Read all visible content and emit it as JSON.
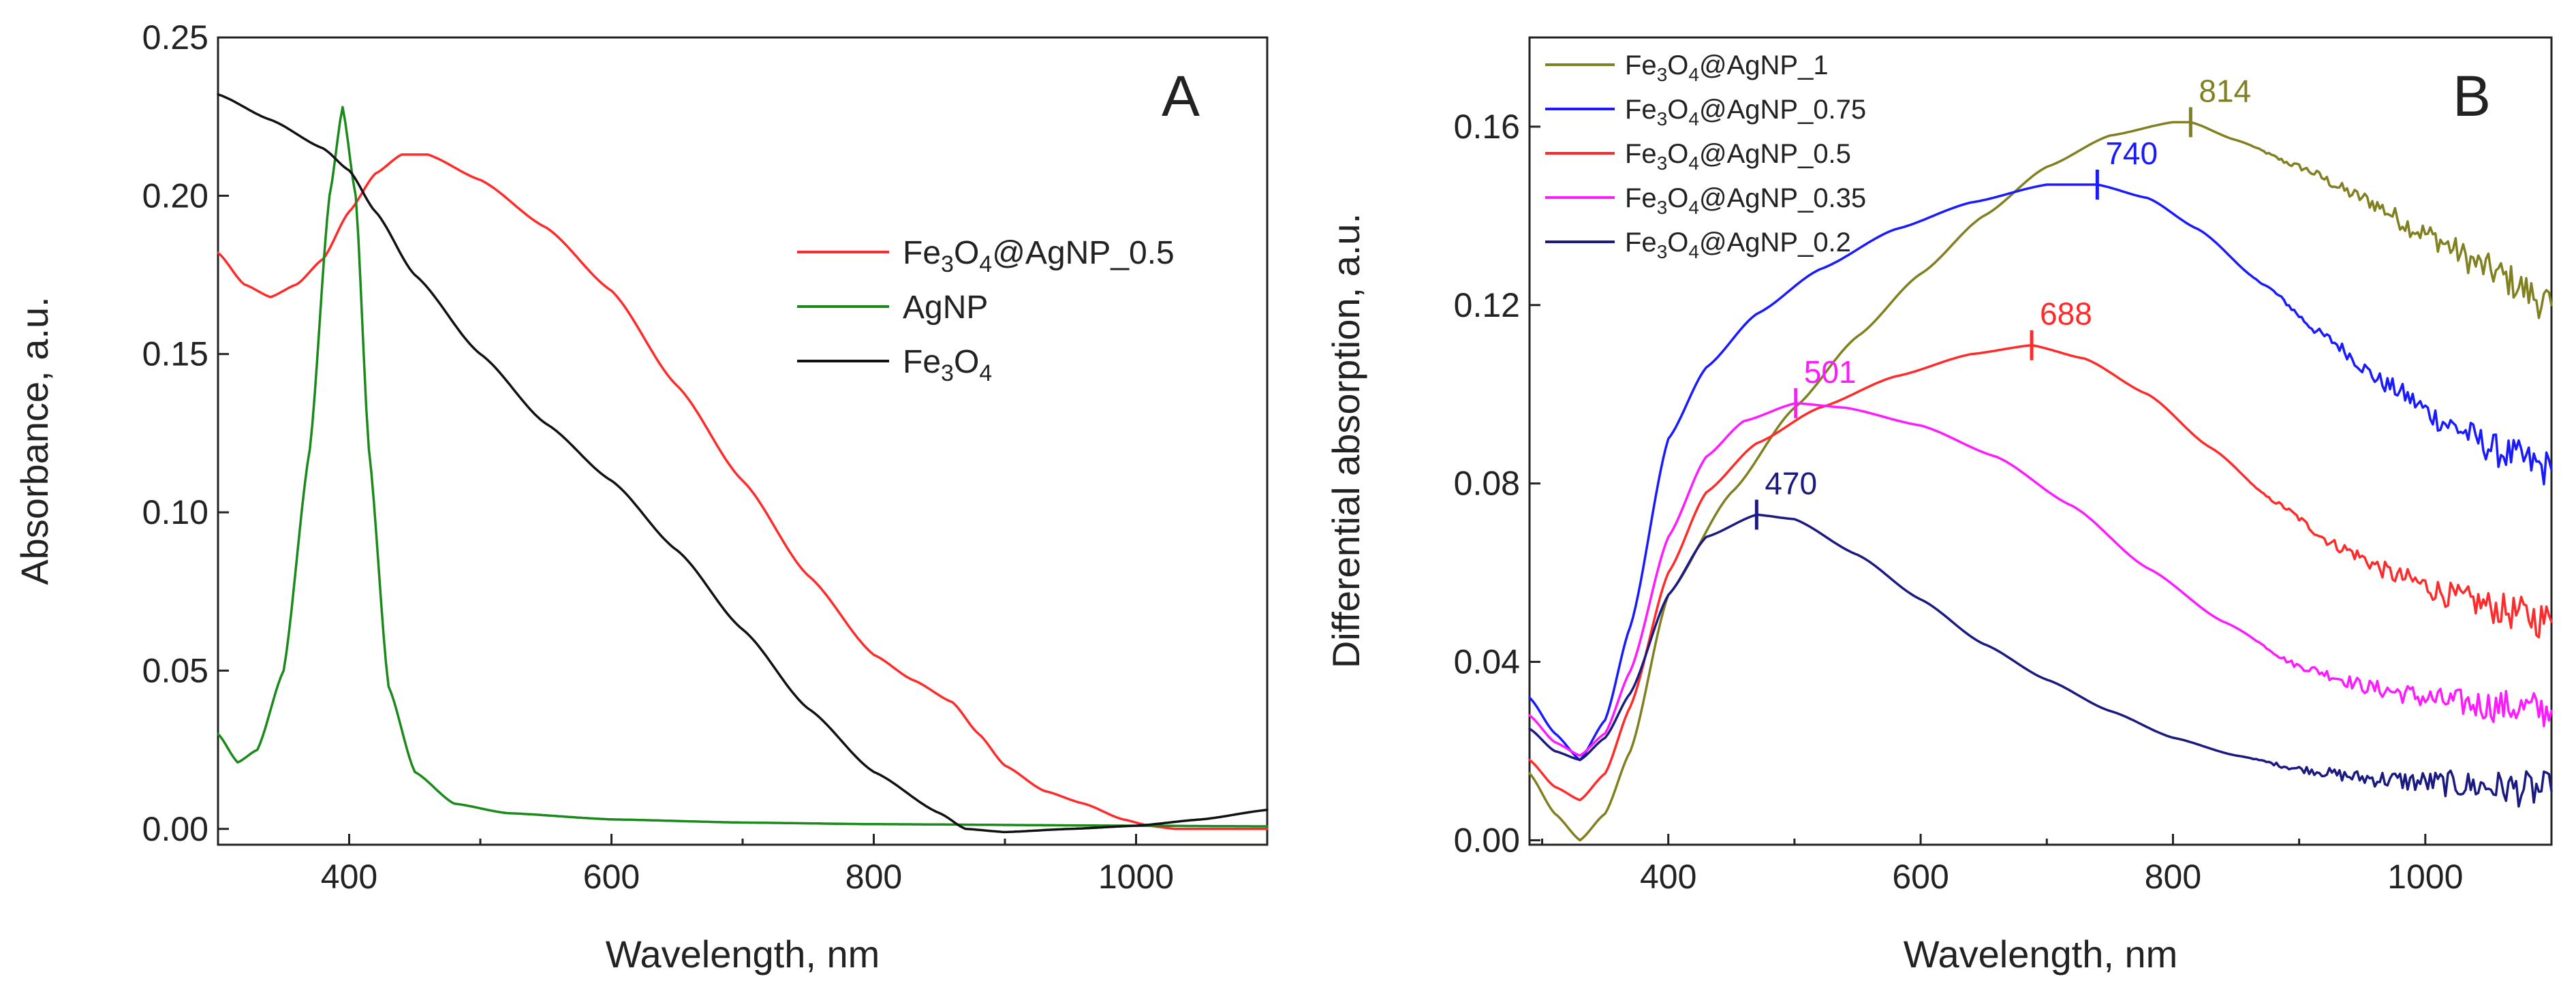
{
  "chart_data": [
    {
      "type": "line",
      "panel_label": "A",
      "xlabel": "Wavelength, nm",
      "ylabel": "Absorbance, a.u.",
      "xlim": [
        300,
        1100
      ],
      "ylim": [
        -0.005,
        0.25
      ],
      "xticks": [
        400,
        600,
        800,
        1000
      ],
      "xtick_labels": [
        "400",
        "600",
        "800",
        "1000"
      ],
      "yticks": [
        0.0,
        0.05,
        0.1,
        0.15,
        0.2,
        0.25
      ],
      "ytick_labels": [
        "0.00",
        "0.05",
        "0.10",
        "0.15",
        "0.20",
        "0.25"
      ],
      "legend_position": "right",
      "series": [
        {
          "name": "Fe3O4@AgNP_0.5",
          "legend_text": {
            "p1": "Fe",
            "s1": "3",
            "p2": "O",
            "s2": "4",
            "p3": "@AgNP_0.5"
          },
          "color": "#ff2a2a",
          "x": [
            300,
            320,
            340,
            360,
            380,
            400,
            420,
            440,
            460,
            500,
            550,
            600,
            650,
            700,
            750,
            800,
            830,
            860,
            880,
            900,
            930,
            960,
            990,
            1010,
            1030,
            1050,
            1070,
            1100
          ],
          "y": [
            0.182,
            0.172,
            0.168,
            0.172,
            0.18,
            0.195,
            0.207,
            0.213,
            0.213,
            0.205,
            0.19,
            0.17,
            0.14,
            0.11,
            0.08,
            0.055,
            0.047,
            0.04,
            0.03,
            0.02,
            0.012,
            0.008,
            0.003,
            0.001,
            0.0,
            0.0,
            0.0,
            0.0
          ]
        },
        {
          "name": "AgNP",
          "legend_text": {
            "p1": "AgNP"
          },
          "color": "#1a8a1a",
          "x": [
            300,
            315,
            330,
            350,
            370,
            385,
            395,
            405,
            415,
            430,
            450,
            480,
            520,
            600,
            700,
            800,
            1000,
            1100
          ],
          "y": [
            0.03,
            0.021,
            0.025,
            0.05,
            0.12,
            0.2,
            0.228,
            0.2,
            0.12,
            0.045,
            0.018,
            0.008,
            0.005,
            0.003,
            0.002,
            0.0015,
            0.001,
            0.0008
          ]
        },
        {
          "name": "Fe3O4",
          "legend_text": {
            "p1": "Fe",
            "s1": "3",
            "p2": "O",
            "s2": "4"
          },
          "color": "#111111",
          "x": [
            300,
            340,
            380,
            400,
            420,
            450,
            500,
            550,
            600,
            650,
            700,
            750,
            800,
            850,
            870,
            900,
            950,
            1000,
            1050,
            1100
          ],
          "y": [
            0.232,
            0.224,
            0.215,
            0.208,
            0.195,
            0.175,
            0.15,
            0.128,
            0.11,
            0.088,
            0.063,
            0.038,
            0.018,
            0.005,
            0.0,
            -0.001,
            0.0,
            0.001,
            0.003,
            0.006
          ]
        }
      ]
    },
    {
      "type": "line",
      "panel_label": "B",
      "xlabel": "Wavelength, nm",
      "ylabel": "Differential absorption, a.u.",
      "xlim": [
        290,
        1100
      ],
      "ylim": [
        -0.001,
        0.18
      ],
      "xticks": [
        400,
        600,
        800,
        1000
      ],
      "xtick_labels": [
        "400",
        "600",
        "800",
        "1000"
      ],
      "yticks": [
        0.0,
        0.04,
        0.08,
        0.12,
        0.16
      ],
      "ytick_labels": [
        "0.00",
        "0.04",
        "0.08",
        "0.12",
        "0.16"
      ],
      "legend_position": "top-left",
      "series": [
        {
          "name": "Fe3O4@AgNP_1",
          "legend_text": {
            "p1": "Fe",
            "s1": "3",
            "p2": "O",
            "s2": "4",
            "p3": "@AgNP_1"
          },
          "color": "#808020",
          "peak_label": "814",
          "peak_x": 814,
          "peak_y": 0.161,
          "x": [
            290,
            310,
            330,
            350,
            370,
            400,
            450,
            500,
            550,
            600,
            650,
            700,
            750,
            800,
            814,
            850,
            900,
            950,
            1000,
            1050,
            1100
          ],
          "y": [
            0.015,
            0.006,
            0.0,
            0.006,
            0.02,
            0.055,
            0.078,
            0.097,
            0.113,
            0.127,
            0.14,
            0.151,
            0.158,
            0.161,
            0.161,
            0.157,
            0.151,
            0.144,
            0.136,
            0.128,
            0.12
          ]
        },
        {
          "name": "Fe3O4@AgNP_0.75",
          "legend_text": {
            "p1": "Fe",
            "s1": "3",
            "p2": "O",
            "s2": "4",
            "p3": "@AgNP_0.75"
          },
          "color": "#1a1aff",
          "peak_label": "740",
          "peak_x": 740,
          "peak_y": 0.147,
          "x": [
            290,
            310,
            330,
            350,
            370,
            400,
            430,
            470,
            520,
            580,
            640,
            700,
            740,
            780,
            820,
            870,
            920,
            970,
            1020,
            1060,
            1100
          ],
          "y": [
            0.032,
            0.024,
            0.018,
            0.027,
            0.048,
            0.09,
            0.106,
            0.118,
            0.128,
            0.137,
            0.143,
            0.147,
            0.147,
            0.144,
            0.137,
            0.125,
            0.113,
            0.102,
            0.093,
            0.087,
            0.083
          ]
        },
        {
          "name": "Fe3O4@AgNP_0.5",
          "legend_text": {
            "p1": "Fe",
            "s1": "3",
            "p2": "O",
            "s2": "4",
            "p3": "@AgNP_0.5"
          },
          "color": "#ff2a2a",
          "peak_label": "688",
          "peak_x": 688,
          "peak_y": 0.111,
          "x": [
            290,
            310,
            330,
            350,
            370,
            400,
            430,
            470,
            520,
            580,
            640,
            688,
            730,
            780,
            830,
            880,
            930,
            980,
            1030,
            1070,
            1100
          ],
          "y": [
            0.018,
            0.012,
            0.009,
            0.015,
            0.03,
            0.06,
            0.078,
            0.089,
            0.097,
            0.104,
            0.109,
            0.111,
            0.108,
            0.1,
            0.088,
            0.076,
            0.066,
            0.059,
            0.054,
            0.051,
            0.049
          ]
        },
        {
          "name": "Fe3O4@AgNP_0.35",
          "legend_text": {
            "p1": "Fe",
            "s1": "3",
            "p2": "O",
            "s2": "4",
            "p3": "@AgNP_0.35"
          },
          "color": "#ff1aff",
          "peak_label": "501",
          "peak_x": 501,
          "peak_y": 0.098,
          "x": [
            290,
            310,
            330,
            350,
            370,
            400,
            430,
            460,
            501,
            540,
            600,
            660,
            720,
            780,
            840,
            900,
            960,
            1020,
            1060,
            1100
          ],
          "y": [
            0.028,
            0.022,
            0.019,
            0.024,
            0.038,
            0.068,
            0.086,
            0.094,
            0.098,
            0.097,
            0.093,
            0.086,
            0.075,
            0.061,
            0.049,
            0.039,
            0.034,
            0.031,
            0.03,
            0.029
          ]
        },
        {
          "name": "Fe3O4@AgNP_0.2",
          "legend_text": {
            "p1": "Fe",
            "s1": "3",
            "p2": "O",
            "s2": "4",
            "p3": "@AgNP_0.2"
          },
          "color": "#1a1a80",
          "peak_label": "470",
          "peak_x": 470,
          "peak_y": 0.073,
          "x": [
            290,
            310,
            330,
            350,
            370,
            400,
            430,
            470,
            500,
            550,
            600,
            650,
            700,
            750,
            800,
            850,
            900,
            950,
            1000,
            1050,
            1100
          ],
          "y": [
            0.025,
            0.02,
            0.018,
            0.023,
            0.033,
            0.055,
            0.068,
            0.073,
            0.072,
            0.064,
            0.054,
            0.044,
            0.036,
            0.029,
            0.023,
            0.019,
            0.016,
            0.014,
            0.013,
            0.012,
            0.011
          ]
        }
      ]
    }
  ]
}
